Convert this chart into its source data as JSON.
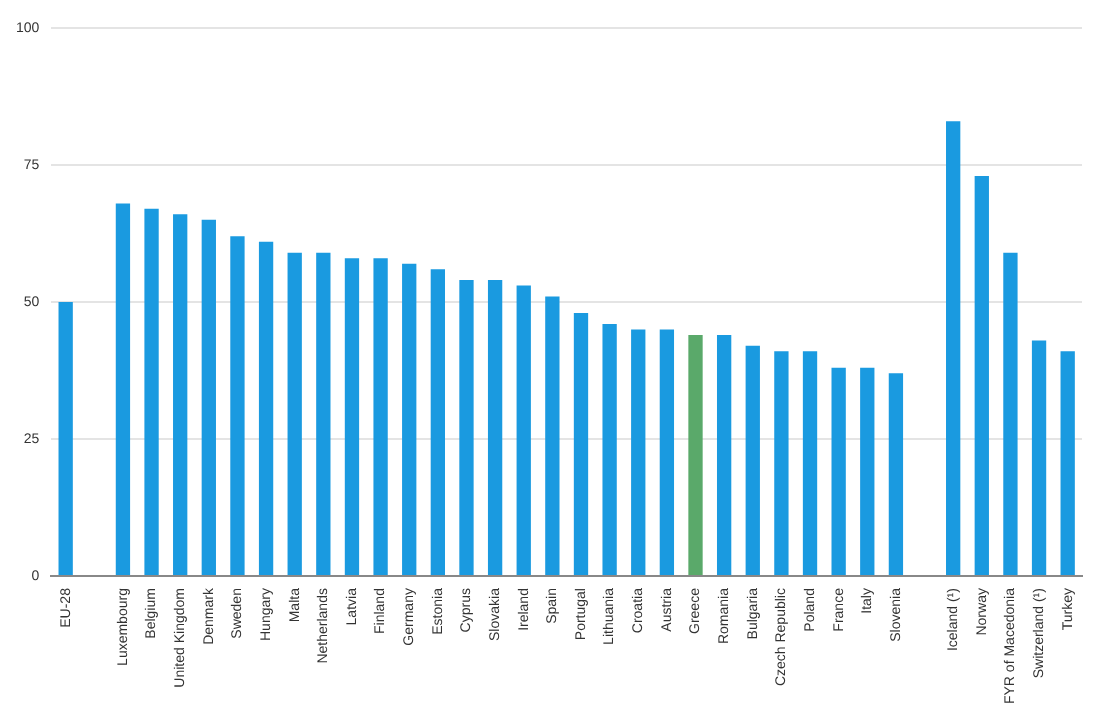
{
  "chart_data": {
    "type": "bar",
    "categories": [
      "EU-28",
      null,
      "Luxembourg",
      "Belgium",
      "United Kingdom",
      "Denmark",
      "Sweden",
      "Hungary",
      "Malta",
      "Netherlands",
      "Latvia",
      "Finland",
      "Germany",
      "Estonia",
      "Cyprus",
      "Slovakia",
      "Ireland",
      "Spain",
      "Portugal",
      "Lithuania",
      "Croatia",
      "Austria",
      "Greece",
      "Romania",
      "Bulgaria",
      "Czech Republic",
      "Poland",
      "France",
      "Italy",
      "Slovenia",
      null,
      "Iceland (¹)",
      "Norway",
      "FYR of Macedonia",
      "Switzerland (¹)",
      "Turkey"
    ],
    "values": [
      50,
      null,
      68,
      67,
      66,
      65,
      62,
      61,
      59,
      59,
      58,
      58,
      57,
      56,
      54,
      54,
      53,
      51,
      48,
      46,
      45,
      45,
      44,
      44,
      42,
      41,
      41,
      38,
      38,
      37,
      null,
      83,
      73,
      59,
      43,
      41
    ],
    "colors": [
      "#1a9ae0",
      null,
      "#1a9ae0",
      "#1a9ae0",
      "#1a9ae0",
      "#1a9ae0",
      "#1a9ae0",
      "#1a9ae0",
      "#1a9ae0",
      "#1a9ae0",
      "#1a9ae0",
      "#1a9ae0",
      "#1a9ae0",
      "#1a9ae0",
      "#1a9ae0",
      "#1a9ae0",
      "#1a9ae0",
      "#1a9ae0",
      "#1a9ae0",
      "#1a9ae0",
      "#1a9ae0",
      "#1a9ae0",
      "#5aa96a",
      "#1a9ae0",
      "#1a9ae0",
      "#1a9ae0",
      "#1a9ae0",
      "#1a9ae0",
      "#1a9ae0",
      "#1a9ae0",
      null,
      "#1a9ae0",
      "#1a9ae0",
      "#1a9ae0",
      "#1a9ae0",
      "#1a9ae0"
    ],
    "ylim": [
      0,
      100
    ],
    "yticks": [
      0,
      25,
      50,
      75,
      100
    ],
    "grid": "y",
    "legend": false
  }
}
